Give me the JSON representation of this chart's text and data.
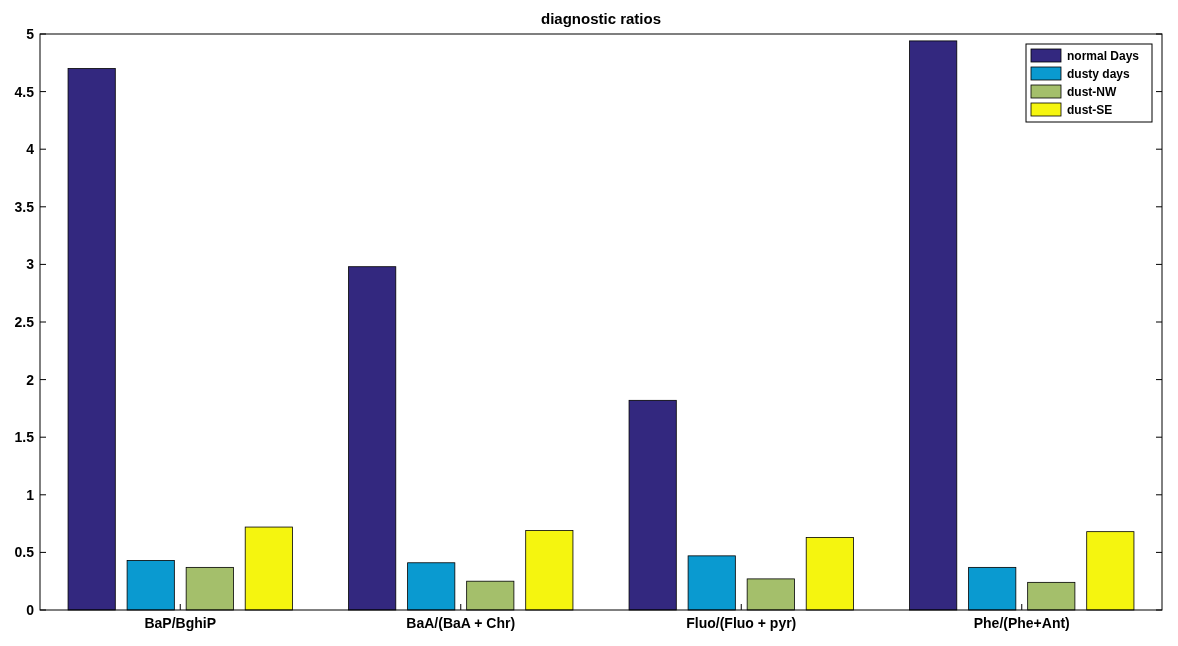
{
  "chart_data": {
    "type": "bar",
    "title": "diagnostic ratios",
    "categories": [
      "BaP/BghiP",
      "BaA/(BaA + Chr)",
      "Fluo/(Fluo + pyr)",
      "Phe/(Phe+Ant)"
    ],
    "series": [
      {
        "name": "normal Days",
        "color": "#33287f",
        "values": [
          4.7,
          2.98,
          1.82,
          4.94
        ]
      },
      {
        "name": "dusty days",
        "color": "#0a9ad0",
        "values": [
          0.43,
          0.41,
          0.47,
          0.37
        ]
      },
      {
        "name": "dust-NW",
        "color": "#a4bf6b",
        "values": [
          0.37,
          0.25,
          0.27,
          0.24
        ]
      },
      {
        "name": "dust-SE",
        "color": "#f5f50f",
        "values": [
          0.72,
          0.69,
          0.63,
          0.68
        ]
      }
    ],
    "ylim": [
      0,
      5
    ],
    "yticks": [
      0,
      0.5,
      1,
      1.5,
      2,
      2.5,
      3,
      3.5,
      4,
      4.5,
      5
    ],
    "grid": false,
    "legend": "top right"
  }
}
